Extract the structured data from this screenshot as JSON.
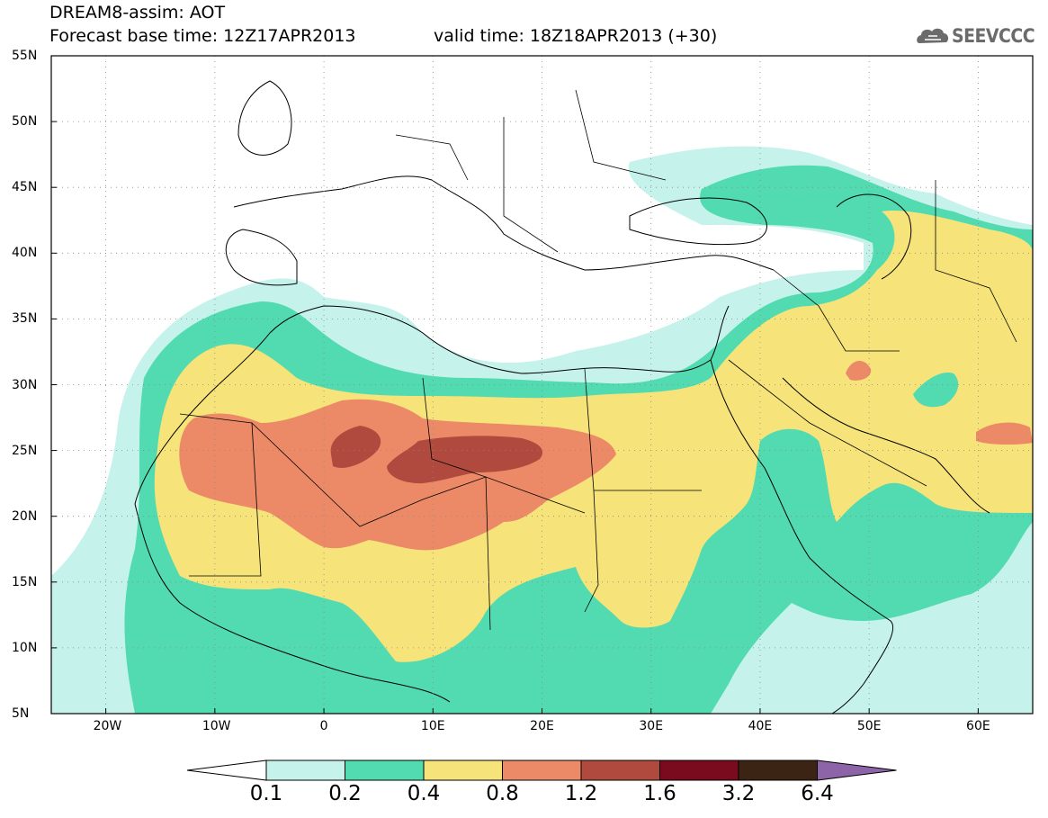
{
  "header": {
    "title_line1": "DREAM8-assim: AOT",
    "title_line2": "Forecast base time: 12Z17APR2013",
    "valid_time": "valid time: 18Z18APR2013 (+30)",
    "logo_text": "SEEVCCC"
  },
  "map": {
    "lat_labels": [
      "55N",
      "50N",
      "45N",
      "40N",
      "35N",
      "30N",
      "25N",
      "20N",
      "15N",
      "10N",
      "5N"
    ],
    "lon_labels": [
      "20W",
      "10W",
      "0",
      "10E",
      "20E",
      "30E",
      "40E",
      "50E",
      "60E"
    ],
    "lon_range": [
      -25,
      65
    ],
    "lat_range": [
      5,
      55
    ],
    "field": "Aerosol optical thickness (dust)"
  },
  "legend": {
    "labels": [
      "0.1",
      "0.2",
      "0.4",
      "0.8",
      "1.2",
      "1.6",
      "3.2",
      "6.4"
    ],
    "colors": [
      "#ffffff",
      "#c6f2ec",
      "#52dbb0",
      "#f6e37a",
      "#ec8a68",
      "#b14a3e",
      "#7a0a1e",
      "#3b2414",
      "#8e64a8"
    ]
  },
  "colors": {
    "c01": "#c6f2ec",
    "c02": "#52dbb0",
    "c04": "#f6e37a",
    "c08": "#ec8a68",
    "c12": "#b14a3e"
  }
}
